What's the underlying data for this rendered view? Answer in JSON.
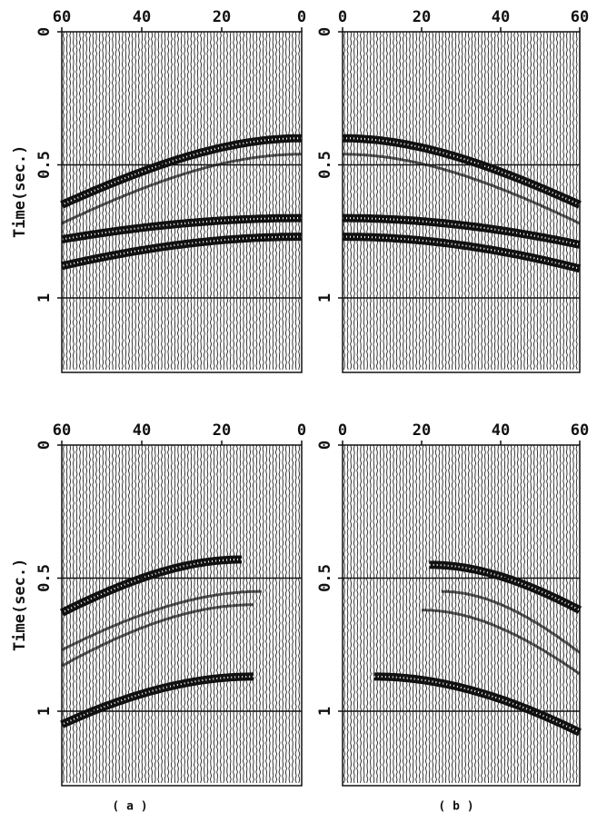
{
  "panels": [
    {
      "x_ticks": [
        "60",
        "40",
        "20",
        "0"
      ],
      "y_ticks": [
        "0",
        "0.5",
        "1"
      ],
      "y_label": "Time(sec.)"
    },
    {
      "x_ticks": [
        "0",
        "20",
        "40",
        "60"
      ],
      "y_ticks": [
        "0",
        "0.5",
        "1"
      ]
    },
    {
      "x_ticks": [
        "60",
        "40",
        "20",
        "0"
      ],
      "y_ticks": [
        "0",
        "0.5",
        "1"
      ],
      "y_label": "Time(sec.)"
    },
    {
      "x_ticks": [
        "0",
        "20",
        "40",
        "60"
      ],
      "y_ticks": [
        "0",
        "0.5",
        "1"
      ]
    }
  ],
  "captions": [
    "( a )",
    "( b )"
  ]
}
